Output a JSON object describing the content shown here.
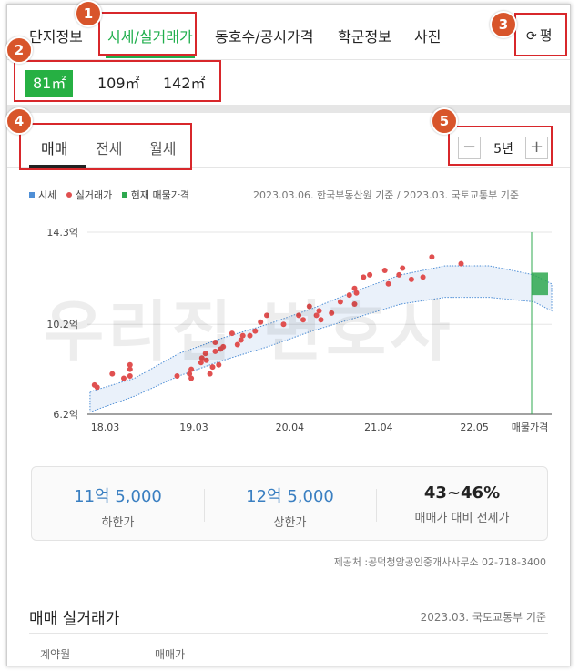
{
  "nav": {
    "tabs": [
      "단지정보",
      "시세/실거래가",
      "동호수/공시가격",
      "학군정보",
      "사진"
    ],
    "active_tab": "시세/실거래가",
    "unit_toggle_icon": "refresh-icon",
    "unit_toggle_label": "평"
  },
  "sizes": {
    "items": [
      "81㎡",
      "109㎡",
      "142㎡"
    ],
    "active": "81㎡"
  },
  "trade_tabs": {
    "items": [
      "매매",
      "전세",
      "월세"
    ],
    "active": "매매"
  },
  "period": {
    "minus_label": "−",
    "value": "5년",
    "plus_label": "+"
  },
  "legend": {
    "items": [
      {
        "label": "시세",
        "color": "#4f8fd6",
        "shape": "square"
      },
      {
        "label": "실거래가",
        "color": "#e05050",
        "shape": "circle"
      },
      {
        "label": "현재 매물가격",
        "color": "#2fa84f",
        "shape": "square"
      }
    ],
    "reference": "2023.03.06. 한국부동산원 기준 / 2023.03. 국토교통부 기준"
  },
  "watermark": "우리집 변호사",
  "chart_data": {
    "type": "scatter",
    "y_tick_labels": [
      "14.3억",
      "10.2억",
      "6.2억"
    ],
    "y_ticks": [
      14.3,
      10.2,
      6.2
    ],
    "ylim": [
      6.2,
      14.3
    ],
    "x_tick_labels": [
      "18.03",
      "19.03",
      "20.04",
      "21.04",
      "22.05",
      "매물가격"
    ],
    "x_ticks": [
      2018.17,
      2019.17,
      2020.25,
      2021.25,
      2022.33
    ],
    "xlim": [
      2017.97,
      2023.2
    ],
    "market_band": {
      "color": "#4f8fd6",
      "x": [
        2018.0,
        2018.5,
        2019.0,
        2019.5,
        2020.0,
        2020.5,
        2021.0,
        2021.5,
        2022.0,
        2022.5,
        2023.0,
        2023.2
      ],
      "low": [
        6.3,
        7.0,
        7.9,
        8.6,
        9.2,
        9.9,
        10.5,
        11.1,
        11.4,
        11.4,
        11.2,
        10.8
      ],
      "high": [
        7.2,
        7.8,
        8.9,
        9.6,
        10.2,
        10.9,
        11.7,
        12.4,
        12.8,
        12.8,
        12.4,
        12.0
      ]
    },
    "transactions": {
      "color": "#e05050",
      "points": [
        {
          "x": 2018.05,
          "y": 7.5
        },
        {
          "x": 2018.08,
          "y": 7.4
        },
        {
          "x": 2018.25,
          "y": 8.0
        },
        {
          "x": 2018.38,
          "y": 7.8
        },
        {
          "x": 2018.45,
          "y": 8.2
        },
        {
          "x": 2018.45,
          "y": 8.4
        },
        {
          "x": 2018.45,
          "y": 7.9
        },
        {
          "x": 2018.98,
          "y": 7.9
        },
        {
          "x": 2019.12,
          "y": 8.0
        },
        {
          "x": 2019.14,
          "y": 8.2
        },
        {
          "x": 2019.14,
          "y": 7.8
        },
        {
          "x": 2019.25,
          "y": 8.5
        },
        {
          "x": 2019.26,
          "y": 8.7
        },
        {
          "x": 2019.3,
          "y": 8.9
        },
        {
          "x": 2019.31,
          "y": 8.6
        },
        {
          "x": 2019.35,
          "y": 8.0
        },
        {
          "x": 2019.38,
          "y": 8.3
        },
        {
          "x": 2019.41,
          "y": 9.4
        },
        {
          "x": 2019.41,
          "y": 9.0
        },
        {
          "x": 2019.45,
          "y": 8.4
        },
        {
          "x": 2019.47,
          "y": 9.1
        },
        {
          "x": 2019.5,
          "y": 9.2
        },
        {
          "x": 2019.6,
          "y": 9.8
        },
        {
          "x": 2019.66,
          "y": 9.3
        },
        {
          "x": 2019.7,
          "y": 9.5
        },
        {
          "x": 2019.72,
          "y": 9.7
        },
        {
          "x": 2019.8,
          "y": 9.7
        },
        {
          "x": 2019.86,
          "y": 9.9
        },
        {
          "x": 2019.92,
          "y": 10.3
        },
        {
          "x": 2019.99,
          "y": 10.6
        },
        {
          "x": 2020.18,
          "y": 10.2
        },
        {
          "x": 2020.35,
          "y": 10.6
        },
        {
          "x": 2020.4,
          "y": 10.4
        },
        {
          "x": 2020.47,
          "y": 11.0
        },
        {
          "x": 2020.55,
          "y": 10.6
        },
        {
          "x": 2020.58,
          "y": 10.8
        },
        {
          "x": 2020.6,
          "y": 10.4
        },
        {
          "x": 2020.72,
          "y": 10.7
        },
        {
          "x": 2020.82,
          "y": 11.2
        },
        {
          "x": 2020.92,
          "y": 11.5
        },
        {
          "x": 2020.98,
          "y": 11.1
        },
        {
          "x": 2020.98,
          "y": 11.8
        },
        {
          "x": 2021.0,
          "y": 11.6
        },
        {
          "x": 2021.08,
          "y": 12.3
        },
        {
          "x": 2021.15,
          "y": 12.4
        },
        {
          "x": 2021.32,
          "y": 12.6
        },
        {
          "x": 2021.36,
          "y": 12.0
        },
        {
          "x": 2021.48,
          "y": 12.4
        },
        {
          "x": 2021.52,
          "y": 12.7
        },
        {
          "x": 2021.62,
          "y": 12.2
        },
        {
          "x": 2021.75,
          "y": 12.3
        },
        {
          "x": 2021.85,
          "y": 13.2
        },
        {
          "x": 2022.18,
          "y": 12.9
        }
      ]
    },
    "current_listing": {
      "color": "#2fa84f",
      "low": 11.5,
      "high": 12.5
    }
  },
  "summary": [
    {
      "value": "11억 5,000",
      "label": "하한가"
    },
    {
      "value": "12억 5,000",
      "label": "상한가"
    },
    {
      "value": "43~46%",
      "label": "매매가 대비 전세가"
    }
  ],
  "provider": "제공처 :공덕청암공인중개사사무소 02-718-3400",
  "deals": {
    "title": "매매 실거래가",
    "reference": "2023.03. 국토교통부 기준",
    "columns": [
      "계약월",
      "매매가"
    ]
  },
  "annotations": [
    "1",
    "2",
    "3",
    "4",
    "5"
  ]
}
